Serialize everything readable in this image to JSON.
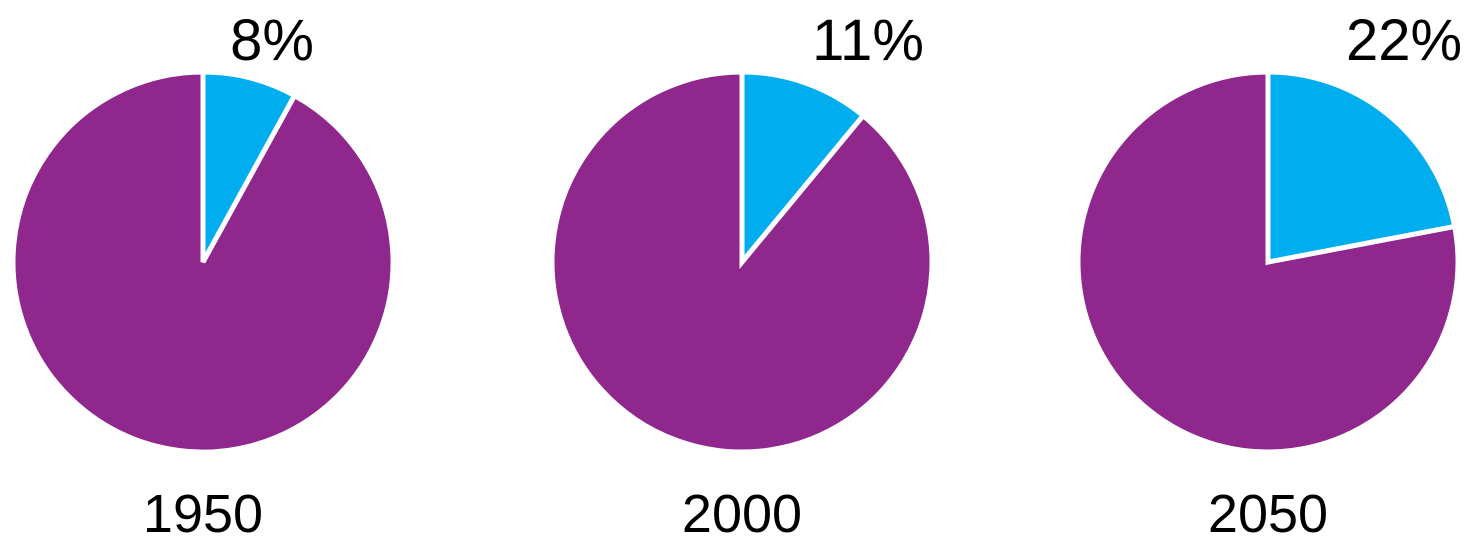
{
  "chart_data": [
    {
      "type": "pie",
      "category": "1950",
      "values": [
        8,
        92
      ],
      "highlight_label": "8%",
      "colors": [
        "#00adee",
        "#8f278d"
      ]
    },
    {
      "type": "pie",
      "category": "2000",
      "values": [
        11,
        89
      ],
      "highlight_label": "11%",
      "colors": [
        "#00adee",
        "#8f278d"
      ]
    },
    {
      "type": "pie",
      "category": "2050",
      "values": [
        22,
        78
      ],
      "highlight_label": "22%",
      "colors": [
        "#00adee",
        "#8f278d"
      ]
    }
  ]
}
